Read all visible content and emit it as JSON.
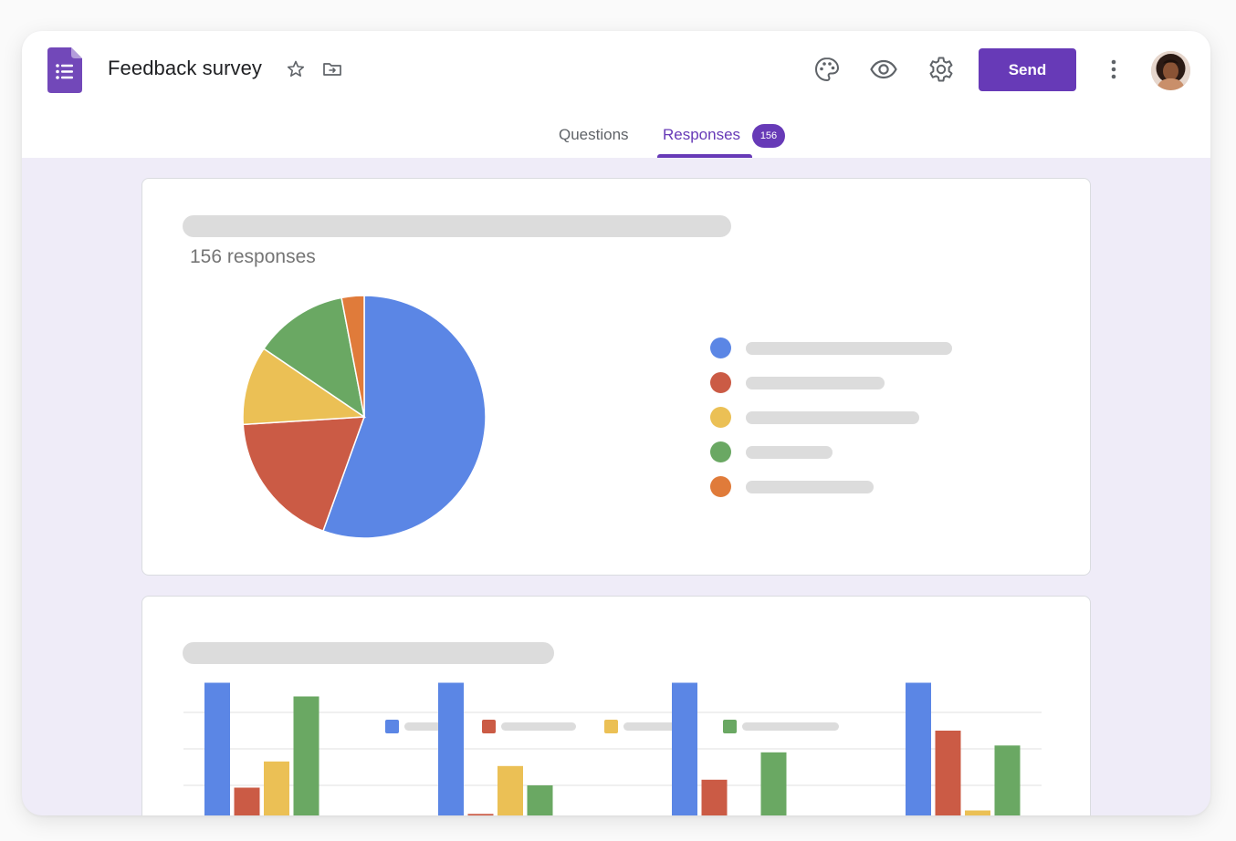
{
  "header": {
    "title": "Feedback survey",
    "send_label": "Send",
    "icons": [
      "forms-logo-icon",
      "star-icon",
      "move-to-folder-icon",
      "palette-icon",
      "eye-icon",
      "gear-icon",
      "more-vert-icon"
    ]
  },
  "tabs": {
    "questions_label": "Questions",
    "responses_label": "Responses",
    "responses_badge": "156",
    "active": "responses"
  },
  "colors": {
    "accent": "#673ab7",
    "blue": "#5b86e5",
    "red": "#cb5b45",
    "yellow": "#ebc055",
    "green": "#6aa863",
    "orange": "#e07b3a",
    "background": "#efecf8"
  },
  "cards": {
    "pie_card": {
      "responses_text": "156 responses"
    }
  },
  "chart_data": [
    {
      "type": "pie",
      "title": "",
      "slices": [
        {
          "name": "",
          "value": 55.5,
          "color": "#5b86e5"
        },
        {
          "name": "",
          "value": 18.5,
          "color": "#cb5b45"
        },
        {
          "name": "",
          "value": 10.5,
          "color": "#ebc055"
        },
        {
          "name": "",
          "value": 12.5,
          "color": "#6aa863"
        },
        {
          "name": "",
          "value": 3.0,
          "color": "#e07b3a"
        }
      ],
      "legend": "right"
    },
    {
      "type": "bar",
      "title": "",
      "categories": [
        "",
        "",
        "",
        ""
      ],
      "series": [
        {
          "color": "#5b86e5",
          "values": [
            12.2,
            12.2,
            12.2,
            12.2
          ]
        },
        {
          "color": "#cb5b45",
          "values": [
            3.0,
            0.7,
            3.7,
            8.0
          ]
        },
        {
          "color": "#ebc055",
          "values": [
            5.3,
            4.9,
            0.2,
            1.0
          ]
        },
        {
          "color": "#6aa863",
          "values": [
            11.0,
            3.2,
            6.1,
            6.7
          ]
        }
      ],
      "ylim": [
        0,
        14.5
      ],
      "grid": true,
      "legend": "top"
    }
  ]
}
